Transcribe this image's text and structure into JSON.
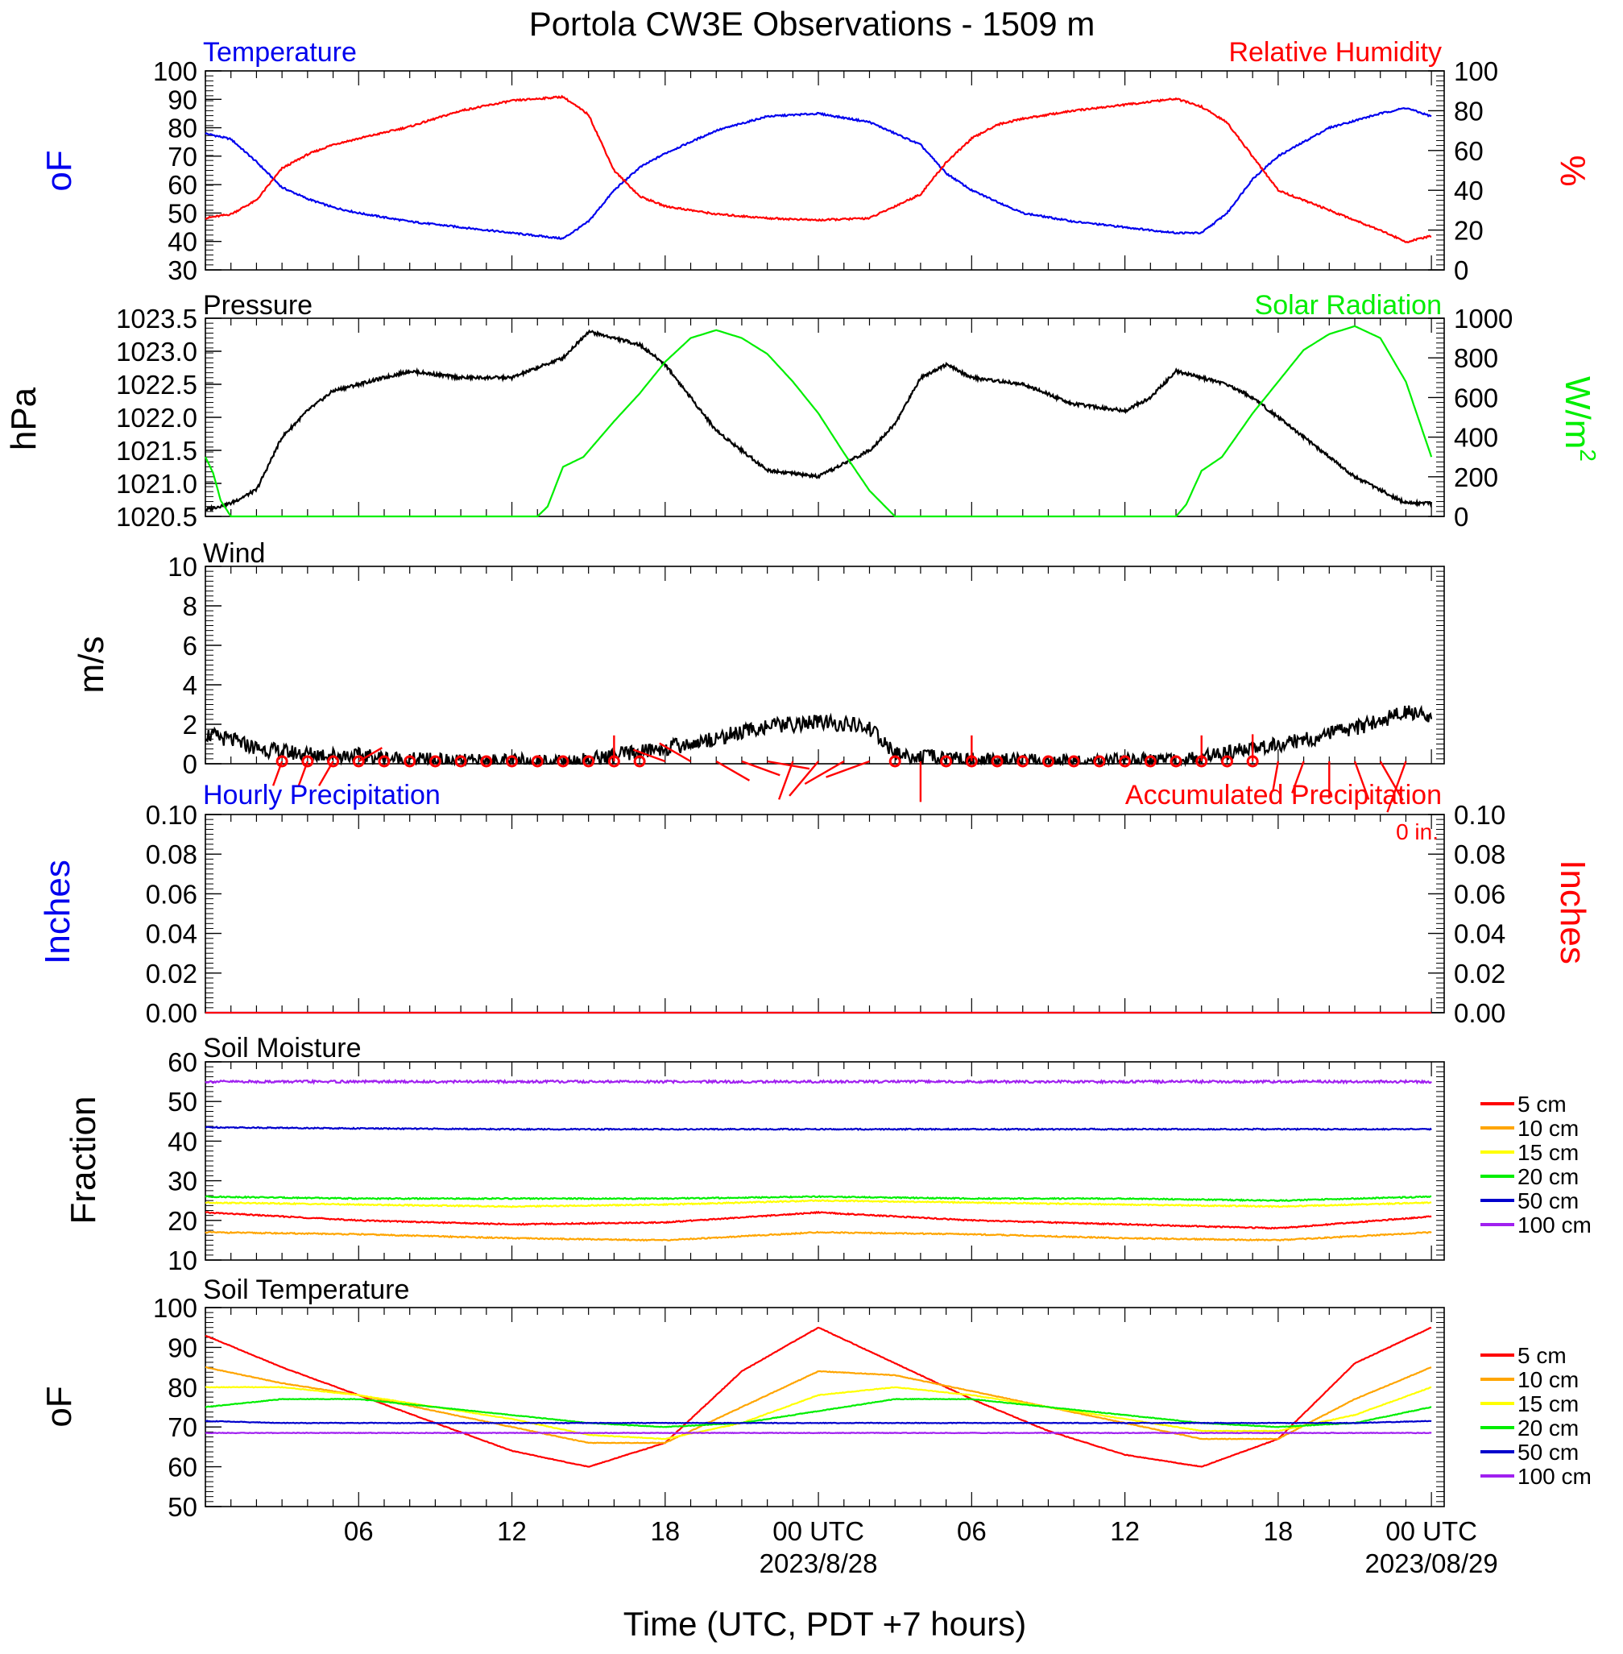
{
  "title": "Portola CW3E Observations - 1509 m",
  "xlabel": "Time (UTC, PDT +7 hours)",
  "time_ticks": [
    {
      "h": 6,
      "label": "06",
      "date": ""
    },
    {
      "h": 12,
      "label": "12",
      "date": ""
    },
    {
      "h": 18,
      "label": "18",
      "date": ""
    },
    {
      "h": 24,
      "label": "00 UTC",
      "date": "2023/8/28"
    },
    {
      "h": 30,
      "label": "06",
      "date": ""
    },
    {
      "h": 36,
      "label": "12",
      "date": ""
    },
    {
      "h": 42,
      "label": "18",
      "date": ""
    },
    {
      "h": 48,
      "label": "00 UTC",
      "date": "2023/08/29"
    }
  ],
  "colors": {
    "temperature": "#0000ee",
    "humidity": "#ff0000",
    "pressure": "#000000",
    "solar": "#00ee00",
    "wind": "#000000",
    "barbs": "#ff0000",
    "precip_hourly": "#0000ee",
    "precip_accum": "#ff0000",
    "d5": "#ff0000",
    "d10": "#ffa500",
    "d15": "#ffff00",
    "d20": "#00ee00",
    "d50": "#0000cc",
    "d100": "#a020f0"
  },
  "chart_data": [
    {
      "type": "line",
      "panel": "Temperature / Relative Humidity",
      "left_label": "Temperature",
      "right_label": "Relative Humidity",
      "ylabel_left": "oF",
      "ylabel_right": "%",
      "ylim_left": [
        30,
        100
      ],
      "ylim_right": [
        0,
        100
      ],
      "yticks_left": [
        "30",
        "40",
        "50",
        "60",
        "70",
        "80",
        "90",
        "100"
      ],
      "yticks_right": [
        "0",
        "20",
        "40",
        "60",
        "80",
        "100"
      ],
      "x_hours": [
        0,
        1,
        2,
        3,
        4,
        5,
        6,
        8,
        10,
        12,
        14,
        15,
        16,
        17,
        18,
        20,
        22,
        24,
        26,
        28,
        29,
        30,
        31,
        32,
        34,
        36,
        38,
        39,
        40,
        41,
        42,
        44,
        46,
        47,
        48
      ],
      "series": [
        {
          "name": "Temperature",
          "axis": "left",
          "values": [
            78,
            76,
            68,
            59,
            55,
            52,
            50,
            47,
            45,
            43,
            41,
            47,
            58,
            66,
            71,
            79,
            84,
            85,
            82,
            74,
            64,
            58,
            54,
            50,
            47,
            45,
            43,
            43,
            50,
            62,
            70,
            80,
            85,
            87,
            84
          ]
        },
        {
          "name": "Relative Humidity",
          "axis": "right",
          "values": [
            26,
            28,
            35,
            51,
            58,
            63,
            66,
            72,
            80,
            85,
            87,
            78,
            50,
            37,
            32,
            28,
            26,
            25,
            26,
            38,
            54,
            66,
            73,
            76,
            80,
            83,
            86,
            82,
            74,
            57,
            40,
            30,
            20,
            14,
            17
          ]
        }
      ]
    },
    {
      "type": "line",
      "panel": "Pressure / Solar Radiation",
      "left_label": "Pressure",
      "right_label": "Solar Radiation",
      "ylabel_left": "hPa",
      "ylabel_right": "W/m",
      "ylabel_right_sup": "2",
      "ylim_left": [
        1020.5,
        1023.5
      ],
      "ylim_right": [
        0,
        1000
      ],
      "yticks_left": [
        "1020.5",
        "1021.0",
        "1021.5",
        "1022.0",
        "1022.5",
        "1023.0",
        "1023.5"
      ],
      "yticks_right": [
        "0",
        "200",
        "400",
        "600",
        "800",
        "1000"
      ],
      "series": [
        {
          "name": "Pressure",
          "axis": "left",
          "x": [
            0,
            1,
            2,
            3,
            4,
            5,
            6,
            8,
            10,
            12,
            14,
            15,
            16,
            17,
            18,
            19,
            20,
            22,
            24,
            25,
            26,
            27,
            28,
            29,
            30,
            32,
            34,
            36,
            37,
            38,
            39,
            40,
            41,
            42,
            43,
            44,
            45,
            46,
            47,
            48
          ],
          "values": [
            1020.6,
            1020.7,
            1020.9,
            1021.7,
            1022.1,
            1022.4,
            1022.5,
            1022.7,
            1022.6,
            1022.6,
            1022.9,
            1023.3,
            1023.2,
            1023.1,
            1022.8,
            1022.3,
            1021.8,
            1021.2,
            1021.1,
            1021.3,
            1021.5,
            1021.9,
            1022.6,
            1022.8,
            1022.6,
            1022.5,
            1022.2,
            1022.1,
            1022.3,
            1022.7,
            1022.6,
            1022.5,
            1022.3,
            1022.0,
            1021.7,
            1021.4,
            1021.1,
            1020.9,
            1020.7,
            1020.7
          ]
        },
        {
          "name": "Solar Radiation",
          "axis": "right",
          "x": [
            0,
            0.3,
            0.6,
            1,
            1.3,
            13,
            13.4,
            14,
            14.8,
            16,
            17,
            18,
            19,
            20,
            21,
            22,
            23,
            24,
            25,
            26,
            27,
            38,
            38.4,
            39,
            39.8,
            41,
            42,
            43,
            44,
            45,
            46,
            47,
            48
          ],
          "values": [
            300,
            220,
            80,
            0,
            0,
            0,
            50,
            250,
            300,
            480,
            620,
            780,
            900,
            940,
            900,
            820,
            680,
            520,
            320,
            130,
            0,
            0,
            60,
            230,
            300,
            520,
            680,
            840,
            920,
            960,
            900,
            680,
            300
          ]
        }
      ]
    },
    {
      "type": "line",
      "panel": "Wind",
      "left_label": "Wind",
      "ylabel_left": "m/s",
      "ylim_left": [
        0,
        10
      ],
      "yticks_left": [
        "0",
        "2",
        "4",
        "6",
        "8",
        "10"
      ],
      "x_hours": [
        0,
        1,
        2,
        3,
        4,
        6,
        8,
        10,
        12,
        14,
        15,
        16,
        17,
        18,
        19,
        20,
        21,
        22,
        23,
        24,
        25,
        26,
        27,
        28,
        29,
        30,
        32,
        34,
        36,
        38,
        39,
        40,
        41,
        42,
        43,
        44,
        45,
        46,
        47,
        48
      ],
      "series": [
        {
          "name": "Wind speed",
          "values": [
            1.5,
            1.2,
            0.8,
            0.6,
            0.5,
            0.4,
            0.2,
            0.1,
            0.1,
            0.1,
            0.2,
            0.4,
            0.6,
            0.8,
            1.0,
            1.3,
            1.6,
            1.9,
            2.0,
            2.1,
            2.0,
            1.8,
            0.5,
            0.3,
            0.3,
            0.2,
            0.1,
            0.1,
            0.1,
            0.2,
            0.3,
            0.5,
            0.8,
            1.0,
            1.2,
            1.5,
            1.8,
            2.2,
            2.6,
            2.4
          ]
        }
      ],
      "barb_hours": [
        3,
        4,
        5,
        6,
        7,
        8,
        9,
        10,
        11,
        12,
        13,
        14,
        15,
        16,
        17,
        18,
        19,
        20,
        21,
        22,
        23,
        24,
        25,
        26,
        27,
        28,
        29,
        30,
        31,
        32,
        33,
        34,
        35,
        36,
        37,
        38,
        39,
        40,
        41,
        42,
        43,
        44,
        45,
        46,
        47
      ],
      "barb_speeds": [
        0.3,
        0.3,
        0.5,
        0.4,
        0,
        0,
        0,
        0,
        0,
        0,
        0,
        0,
        0,
        0.3,
        0.2,
        1.0,
        1.2,
        1.4,
        1.6,
        1.8,
        1.6,
        2.0,
        2.0,
        2.1,
        0,
        1.6,
        0.2,
        0.3,
        0,
        0,
        0,
        0,
        0,
        0,
        0,
        0,
        0.3,
        0,
        0.4,
        0.7,
        1.0,
        1.3,
        1.6,
        2.0,
        2.8
      ],
      "barb_dirs": [
        200,
        200,
        210,
        60,
        0,
        0,
        0,
        0,
        0,
        0,
        0,
        0,
        0,
        0,
        0,
        290,
        300,
        120,
        110,
        100,
        200,
        220,
        240,
        250,
        0,
        180,
        0,
        0,
        0,
        0,
        0,
        0,
        0,
        0,
        0,
        0,
        0,
        0,
        0,
        190,
        200,
        180,
        160,
        150,
        200
      ]
    },
    {
      "type": "line",
      "panel": "Precipitation",
      "left_label": "Hourly Precipitation",
      "right_label": "Accumulated Precipitation",
      "accum_total": "0 in.",
      "ylabel_left": "Inches",
      "ylabel_right": "Inches",
      "ylim_left": [
        0,
        0.1
      ],
      "ylim_right": [
        0,
        0.1
      ],
      "yticks_left": [
        "0.00",
        "0.02",
        "0.04",
        "0.06",
        "0.08",
        "0.10"
      ],
      "yticks_right": [
        "0.00",
        "0.02",
        "0.04",
        "0.06",
        "0.08",
        "0.10"
      ],
      "series": [
        {
          "name": "Hourly Precipitation",
          "values": [
            0,
            0
          ]
        },
        {
          "name": "Accumulated Precipitation",
          "values": [
            0,
            0
          ]
        }
      ],
      "x_hours": [
        0,
        48
      ]
    },
    {
      "type": "line",
      "panel": "Soil Moisture",
      "left_label": "Soil Moisture",
      "ylabel_left": "Fraction",
      "ylim_left": [
        10,
        60
      ],
      "yticks_left": [
        "10",
        "20",
        "30",
        "40",
        "50",
        "60"
      ],
      "x_hours": [
        0,
        6,
        12,
        18,
        24,
        30,
        36,
        42,
        48
      ],
      "series": [
        {
          "name": "5 cm",
          "values": [
            22,
            20,
            19,
            19.5,
            22,
            20,
            19,
            18,
            21
          ]
        },
        {
          "name": "10 cm",
          "values": [
            17,
            16.5,
            15.5,
            15,
            17,
            16.5,
            15.5,
            15,
            17
          ]
        },
        {
          "name": "15 cm",
          "values": [
            24.5,
            24,
            23.5,
            24,
            25,
            24.5,
            24,
            23.5,
            24.5
          ]
        },
        {
          "name": "20 cm",
          "values": [
            26,
            25.5,
            25.5,
            25.5,
            26,
            25.5,
            25.5,
            25,
            26
          ]
        },
        {
          "name": "50 cm",
          "values": [
            43.5,
            43.2,
            43,
            43,
            43,
            43,
            43,
            43,
            43
          ]
        },
        {
          "name": "100 cm",
          "values": [
            55,
            55,
            55,
            55,
            55,
            55,
            55,
            55,
            55
          ]
        }
      ]
    },
    {
      "type": "line",
      "panel": "Soil Temperature",
      "left_label": "Soil Temperature",
      "ylabel_left": "oF",
      "ylim_left": [
        50,
        100
      ],
      "yticks_left": [
        "50",
        "60",
        "70",
        "80",
        "90",
        "100"
      ],
      "x_hours": [
        0,
        3,
        6,
        9,
        12,
        15,
        18,
        21,
        24,
        27,
        30,
        33,
        36,
        39,
        42,
        45,
        48
      ],
      "series": [
        {
          "name": "5 cm",
          "values": [
            93,
            85,
            78,
            71,
            64,
            60,
            66,
            84,
            95,
            86,
            77,
            69,
            63,
            60,
            67,
            86,
            95
          ]
        },
        {
          "name": "10 cm",
          "values": [
            85,
            81,
            78,
            74,
            70,
            66,
            66,
            75,
            84,
            83,
            79,
            75,
            71,
            67,
            67,
            77,
            85
          ]
        },
        {
          "name": "15 cm",
          "values": [
            80,
            80,
            78,
            75,
            72,
            68,
            67,
            71,
            78,
            80,
            78,
            75,
            72,
            69,
            69,
            73,
            80
          ]
        },
        {
          "name": "20 cm",
          "values": [
            75,
            77,
            77,
            75,
            73,
            71,
            70,
            71,
            74,
            77,
            77,
            75,
            73,
            71,
            70,
            71,
            75
          ]
        },
        {
          "name": "50 cm",
          "values": [
            71.5,
            71,
            71,
            71,
            71,
            71,
            71,
            71,
            71,
            71,
            71,
            71,
            71,
            71,
            71,
            71,
            71.5
          ]
        },
        {
          "name": "100 cm",
          "values": [
            68.5,
            68.5,
            68.5,
            68.5,
            68.5,
            68.5,
            68.5,
            68.5,
            68.5,
            68.5,
            68.5,
            68.5,
            68.5,
            68.5,
            68.5,
            68.5,
            68.5
          ]
        }
      ]
    }
  ],
  "legend": [
    "5 cm",
    "10 cm",
    "15 cm",
    "20 cm",
    "50 cm",
    "100 cm"
  ]
}
